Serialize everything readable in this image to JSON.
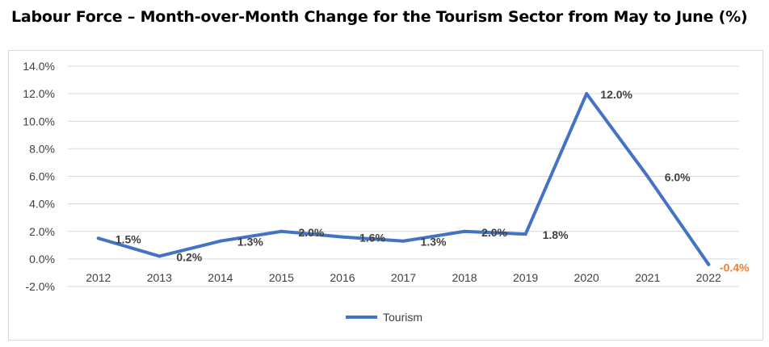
{
  "title": "Labour Force – Month-over-Month Change for the Tourism Sector from May to June (%)",
  "colors": {
    "line": "#4472c4",
    "negative_label": "#ed7d31",
    "grid": "#d9d9d9",
    "text": "#404040"
  },
  "chart_data": {
    "type": "line",
    "title": "Labour Force – Month-over-Month Change for the Tourism Sector from May to June (%)",
    "xlabel": "",
    "ylabel": "",
    "categories": [
      "2012",
      "2013",
      "2014",
      "2015",
      "2016",
      "2017",
      "2018",
      "2019",
      "2020",
      "2021",
      "2022"
    ],
    "series": [
      {
        "name": "Tourism",
        "values": [
          1.5,
          0.2,
          1.3,
          2.0,
          1.6,
          1.3,
          2.0,
          1.8,
          12.0,
          6.0,
          -0.4
        ],
        "labels": [
          "1.5%",
          "0.2%",
          "1.3%",
          "2.0%",
          "1.6%",
          "1.3%",
          "2.0%",
          "1.8%",
          "12.0%",
          "6.0%",
          "-0.4%"
        ]
      }
    ],
    "ylim": [
      -2,
      14
    ],
    "yticks": [
      -2,
      0,
      2,
      4,
      6,
      8,
      10,
      12,
      14
    ],
    "ytick_labels": [
      "-2.0%",
      "0.0%",
      "2.0%",
      "4.0%",
      "6.0%",
      "8.0%",
      "10.0%",
      "12.0%",
      "14.0%"
    ],
    "grid": true,
    "legend": "bottom"
  }
}
